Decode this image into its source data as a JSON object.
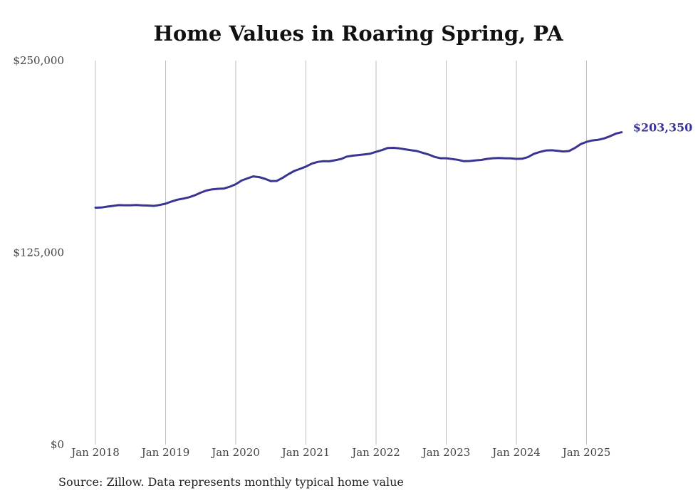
{
  "chart_data": {
    "type": "line",
    "title": "Home Values in Roaring Spring, PA",
    "source": "Source: Zillow. Data represents monthly typical home value",
    "ylim": [
      0,
      250000
    ],
    "yticks": [
      {
        "value": 0,
        "label": "$0"
      },
      {
        "value": 125000,
        "label": "$125,000"
      },
      {
        "value": 250000,
        "label": "$250,000"
      }
    ],
    "xticks": [
      {
        "x": 2018,
        "label": "Jan 2018"
      },
      {
        "x": 2019,
        "label": "Jan 2019"
      },
      {
        "x": 2020,
        "label": "Jan 2020"
      },
      {
        "x": 2021,
        "label": "Jan 2021"
      },
      {
        "x": 2022,
        "label": "Jan 2022"
      },
      {
        "x": 2023,
        "label": "Jan 2023"
      },
      {
        "x": 2024,
        "label": "Jan 2024"
      },
      {
        "x": 2025,
        "label": "Jan 2025"
      }
    ],
    "xlim": [
      2018,
      2025.5
    ],
    "grid": "vertical",
    "line_color": "#3a3593",
    "end_label": "$203,350",
    "series": [
      {
        "name": "Typical home value",
        "points": [
          [
            2018.0,
            154200
          ],
          [
            2018.083,
            154300
          ],
          [
            2018.167,
            154900
          ],
          [
            2018.25,
            155400
          ],
          [
            2018.333,
            155900
          ],
          [
            2018.417,
            155800
          ],
          [
            2018.5,
            155800
          ],
          [
            2018.583,
            156000
          ],
          [
            2018.667,
            155700
          ],
          [
            2018.75,
            155600
          ],
          [
            2018.833,
            155400
          ],
          [
            2018.917,
            156000
          ],
          [
            2019.0,
            156800
          ],
          [
            2019.083,
            158200
          ],
          [
            2019.167,
            159400
          ],
          [
            2019.25,
            160100
          ],
          [
            2019.333,
            161000
          ],
          [
            2019.417,
            162300
          ],
          [
            2019.5,
            164000
          ],
          [
            2019.583,
            165400
          ],
          [
            2019.667,
            166200
          ],
          [
            2019.75,
            166500
          ],
          [
            2019.833,
            166700
          ],
          [
            2019.917,
            167900
          ],
          [
            2020.0,
            169500
          ],
          [
            2020.083,
            171900
          ],
          [
            2020.167,
            173300
          ],
          [
            2020.25,
            174600
          ],
          [
            2020.333,
            174100
          ],
          [
            2020.417,
            173000
          ],
          [
            2020.5,
            171500
          ],
          [
            2020.583,
            171600
          ],
          [
            2020.667,
            173600
          ],
          [
            2020.75,
            176000
          ],
          [
            2020.833,
            178100
          ],
          [
            2020.917,
            179500
          ],
          [
            2021.0,
            181000
          ],
          [
            2021.083,
            182900
          ],
          [
            2021.167,
            184000
          ],
          [
            2021.25,
            184500
          ],
          [
            2021.333,
            184400
          ],
          [
            2021.417,
            185100
          ],
          [
            2021.5,
            185900
          ],
          [
            2021.583,
            187500
          ],
          [
            2021.667,
            188100
          ],
          [
            2021.75,
            188500
          ],
          [
            2021.833,
            188900
          ],
          [
            2021.917,
            189400
          ],
          [
            2022.0,
            190600
          ],
          [
            2022.083,
            191700
          ],
          [
            2022.167,
            193100
          ],
          [
            2022.25,
            193200
          ],
          [
            2022.333,
            192800
          ],
          [
            2022.417,
            192200
          ],
          [
            2022.5,
            191600
          ],
          [
            2022.583,
            191100
          ],
          [
            2022.667,
            189900
          ],
          [
            2022.75,
            188800
          ],
          [
            2022.833,
            187300
          ],
          [
            2022.917,
            186400
          ],
          [
            2023.0,
            186400
          ],
          [
            2023.083,
            185900
          ],
          [
            2023.167,
            185400
          ],
          [
            2023.25,
            184500
          ],
          [
            2023.333,
            184600
          ],
          [
            2023.417,
            185000
          ],
          [
            2023.5,
            185300
          ],
          [
            2023.583,
            186000
          ],
          [
            2023.667,
            186400
          ],
          [
            2023.75,
            186600
          ],
          [
            2023.833,
            186400
          ],
          [
            2023.917,
            186300
          ],
          [
            2024.0,
            186000
          ],
          [
            2024.083,
            186100
          ],
          [
            2024.167,
            187200
          ],
          [
            2024.25,
            189300
          ],
          [
            2024.333,
            190500
          ],
          [
            2024.417,
            191400
          ],
          [
            2024.5,
            191600
          ],
          [
            2024.583,
            191300
          ],
          [
            2024.667,
            190800
          ],
          [
            2024.75,
            191100
          ],
          [
            2024.833,
            193100
          ],
          [
            2024.917,
            195600
          ],
          [
            2025.0,
            197100
          ],
          [
            2025.083,
            198000
          ],
          [
            2025.167,
            198400
          ],
          [
            2025.25,
            199300
          ],
          [
            2025.333,
            200700
          ],
          [
            2025.417,
            202400
          ],
          [
            2025.5,
            203350
          ]
        ]
      }
    ]
  }
}
